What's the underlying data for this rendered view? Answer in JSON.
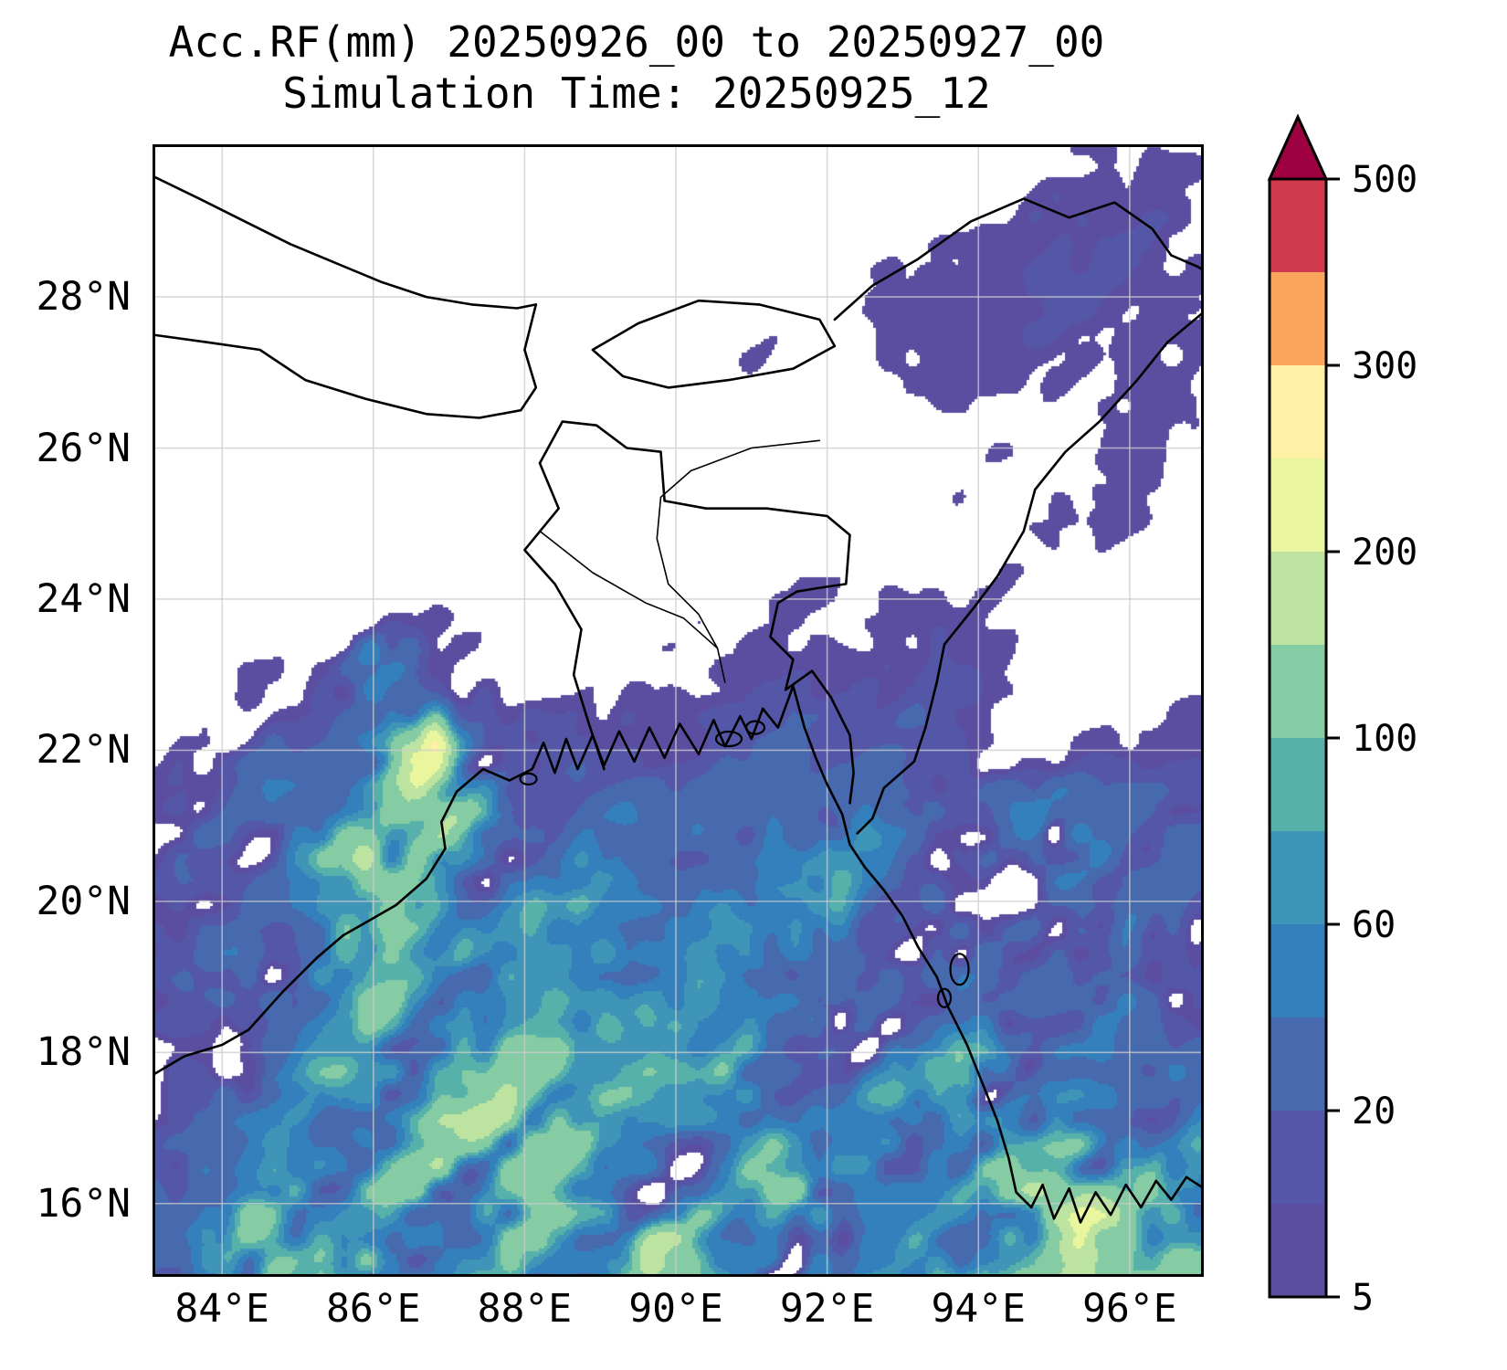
{
  "title": {
    "line1": "Acc.RF(mm) 20250926_00 to 20250927_00",
    "line2": "Simulation Time: 20250925_12"
  },
  "axes": {
    "x_tick_labels": [
      "84°E",
      "86°E",
      "88°E",
      "90°E",
      "92°E",
      "94°E",
      "96°E"
    ],
    "x_tick_lons": [
      84,
      86,
      88,
      90,
      92,
      94,
      96
    ],
    "y_tick_labels": [
      "28°N",
      "26°N",
      "24°N",
      "22°N",
      "20°N",
      "18°N",
      "16°N"
    ],
    "y_tick_lats": [
      28,
      26,
      24,
      22,
      20,
      18,
      16
    ],
    "grid_color": "#cdcdcd",
    "frame_color": "#000000"
  },
  "colorbar": {
    "tick_labels_bottom_up": [
      "5",
      "20",
      "60",
      "100",
      "200",
      "300",
      "500"
    ],
    "orientation": "vertical",
    "extend": "max"
  },
  "chart_data": {
    "type": "heatmap",
    "title": "Acc.RF(mm) 20250926_00 to 20250927_00",
    "subtitle": "Simulation Time: 20250925_12",
    "units": "mm",
    "extent": {
      "lon_min": 83.08,
      "lon_max": 96.98,
      "lat_min": 15.03,
      "lat_max": 30.02
    },
    "levels_mm": [
      5,
      10,
      20,
      40,
      60,
      80,
      100,
      150,
      200,
      250,
      300,
      400,
      500
    ],
    "colors": [
      "#5b4ea1",
      "#5457a8",
      "#4769ae",
      "#3380bc",
      "#3f95b8",
      "#57b1ab",
      "#85cba4",
      "#bce4a0",
      "#e9f69e",
      "#fef0a5",
      "#fca55d",
      "#d13a4e"
    ],
    "over_color": "#9e0142",
    "no_data_color": "#ffffff",
    "grid_lons": [
      83,
      84,
      85,
      86,
      87,
      88,
      89,
      90,
      91,
      92,
      93,
      94,
      95,
      96,
      97
    ],
    "grid_lats": [
      30,
      29,
      28,
      27,
      26,
      25,
      24,
      23,
      22,
      21,
      20,
      19,
      18,
      17,
      16,
      15
    ],
    "base_mm": [
      [
        0,
        0,
        0,
        0,
        0,
        0,
        0,
        0,
        0,
        0,
        1,
        2,
        4,
        3,
        2
      ],
      [
        0,
        1,
        2,
        1,
        0,
        0,
        0,
        0,
        0,
        1,
        2,
        4,
        7,
        8,
        5
      ],
      [
        1,
        2,
        3,
        2,
        1,
        1,
        1,
        1,
        2,
        3,
        3,
        4,
        7,
        6,
        4
      ],
      [
        0,
        1,
        4,
        4,
        2,
        1,
        1,
        2,
        3,
        2,
        4,
        5,
        8,
        7,
        5
      ],
      [
        0,
        0,
        1,
        1,
        1,
        0,
        1,
        1,
        2,
        2,
        2,
        4,
        5,
        5,
        4
      ],
      [
        0,
        0,
        0,
        1,
        0,
        0,
        1,
        2,
        1,
        1,
        3,
        4,
        4,
        4,
        3
      ],
      [
        2,
        4,
        6,
        5,
        6,
        4,
        3,
        2,
        3,
        5,
        6,
        5,
        2,
        2,
        2
      ],
      [
        4,
        8,
        11,
        9,
        10,
        7,
        5,
        3,
        6,
        8,
        8,
        7,
        3,
        2,
        2
      ],
      [
        8,
        14,
        20,
        26,
        22,
        14,
        9,
        7,
        12,
        16,
        15,
        12,
        4,
        4,
        5
      ],
      [
        10,
        18,
        28,
        34,
        38,
        30,
        25,
        20,
        26,
        32,
        26,
        26,
        20,
        24,
        18
      ],
      [
        12,
        20,
        36,
        46,
        50,
        45,
        40,
        30,
        34,
        46,
        40,
        30,
        26,
        30,
        22
      ],
      [
        14,
        25,
        46,
        60,
        56,
        50,
        45,
        34,
        42,
        56,
        50,
        40,
        32,
        36,
        26
      ],
      [
        16,
        30,
        52,
        70,
        64,
        55,
        50,
        46,
        56,
        60,
        56,
        50,
        42,
        46,
        36
      ],
      [
        18,
        35,
        56,
        74,
        70,
        60,
        52,
        46,
        52,
        56,
        60,
        56,
        52,
        62,
        46
      ],
      [
        20,
        40,
        62,
        80,
        76,
        66,
        56,
        50,
        56,
        62,
        66,
        62,
        58,
        85,
        65
      ],
      [
        25,
        45,
        66,
        86,
        80,
        70,
        60,
        56,
        62,
        66,
        72,
        68,
        62,
        92,
        72
      ]
    ],
    "hotspots": [
      {
        "lon": 86.6,
        "lat": 22.05,
        "amp": 150,
        "r": 0.55
      },
      {
        "lon": 86.1,
        "lat": 23.2,
        "amp": 60,
        "r": 0.45
      },
      {
        "lon": 85.9,
        "lat": 20.4,
        "amp": 70,
        "r": 0.7
      },
      {
        "lon": 86.9,
        "lat": 21.1,
        "amp": 60,
        "r": 0.6
      },
      {
        "lon": 95.0,
        "lat": 16.05,
        "amp": 90,
        "r": 0.8
      },
      {
        "lon": 95.0,
        "lat": 21.0,
        "amp": 70,
        "r": 0.7
      },
      {
        "lon": 93.8,
        "lat": 17.6,
        "amp": 55,
        "r": 0.7
      },
      {
        "lon": 89.6,
        "lat": 15.4,
        "amp": 55,
        "r": 0.8
      },
      {
        "lon": 87.6,
        "lat": 16.6,
        "amp": 45,
        "r": 0.9
      },
      {
        "lon": 91.6,
        "lat": 16.4,
        "amp": 45,
        "r": 0.9
      },
      {
        "lon": 84.4,
        "lat": 15.6,
        "amp": 55,
        "r": 0.7
      }
    ],
    "max_mm_cap": 280
  }
}
